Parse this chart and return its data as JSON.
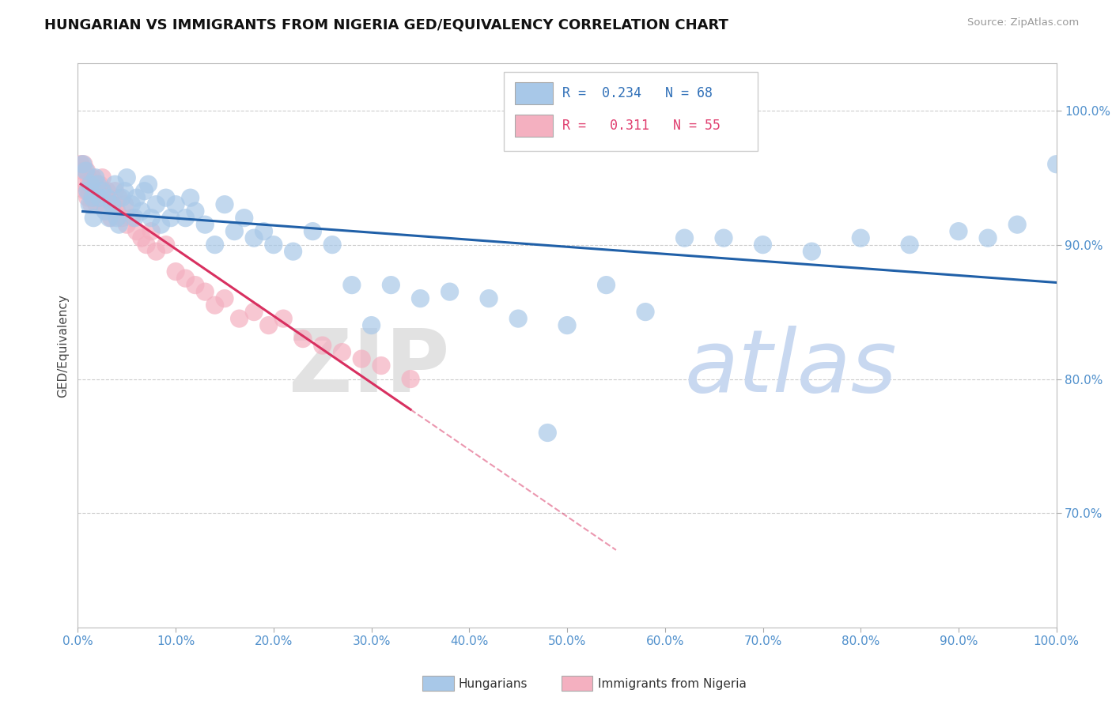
{
  "title": "HUNGARIAN VS IMMIGRANTS FROM NIGERIA GED/EQUIVALENCY CORRELATION CHART",
  "source": "Source: ZipAtlas.com",
  "ylabel": "GED/Equivalency",
  "xmin": 0.0,
  "xmax": 1.0,
  "ymin": 0.615,
  "ymax": 1.035,
  "blue_color": "#a8c8e8",
  "pink_color": "#f4b0c0",
  "blue_line_color": "#2060a8",
  "pink_line_color": "#d83060",
  "blue_scatter_x": [
    0.005,
    0.008,
    0.01,
    0.012,
    0.013,
    0.015,
    0.016,
    0.018,
    0.02,
    0.022,
    0.025,
    0.028,
    0.03,
    0.032,
    0.035,
    0.038,
    0.04,
    0.042,
    0.045,
    0.048,
    0.05,
    0.055,
    0.058,
    0.06,
    0.065,
    0.068,
    0.072,
    0.075,
    0.08,
    0.085,
    0.09,
    0.095,
    0.1,
    0.11,
    0.115,
    0.12,
    0.13,
    0.14,
    0.15,
    0.16,
    0.17,
    0.18,
    0.19,
    0.2,
    0.22,
    0.24,
    0.26,
    0.28,
    0.3,
    0.32,
    0.35,
    0.38,
    0.42,
    0.45,
    0.48,
    0.5,
    0.54,
    0.58,
    0.62,
    0.66,
    0.7,
    0.75,
    0.8,
    0.85,
    0.9,
    0.93,
    0.96,
    1.0
  ],
  "blue_scatter_y": [
    0.96,
    0.955,
    0.94,
    0.93,
    0.945,
    0.935,
    0.92,
    0.95,
    0.945,
    0.935,
    0.94,
    0.925,
    0.935,
    0.92,
    0.93,
    0.945,
    0.92,
    0.915,
    0.935,
    0.94,
    0.95,
    0.93,
    0.92,
    0.935,
    0.925,
    0.94,
    0.945,
    0.92,
    0.93,
    0.915,
    0.935,
    0.92,
    0.93,
    0.92,
    0.935,
    0.925,
    0.915,
    0.9,
    0.93,
    0.91,
    0.92,
    0.905,
    0.91,
    0.9,
    0.895,
    0.91,
    0.9,
    0.87,
    0.84,
    0.87,
    0.86,
    0.865,
    0.86,
    0.845,
    0.76,
    0.84,
    0.87,
    0.85,
    0.905,
    0.905,
    0.9,
    0.895,
    0.905,
    0.9,
    0.91,
    0.905,
    0.915,
    0.96
  ],
  "pink_scatter_x": [
    0.003,
    0.005,
    0.006,
    0.007,
    0.008,
    0.009,
    0.01,
    0.011,
    0.012,
    0.013,
    0.014,
    0.015,
    0.016,
    0.017,
    0.018,
    0.019,
    0.02,
    0.022,
    0.024,
    0.025,
    0.026,
    0.028,
    0.03,
    0.032,
    0.034,
    0.036,
    0.038,
    0.04,
    0.042,
    0.045,
    0.048,
    0.05,
    0.055,
    0.06,
    0.065,
    0.07,
    0.075,
    0.08,
    0.09,
    0.1,
    0.11,
    0.12,
    0.13,
    0.14,
    0.15,
    0.165,
    0.18,
    0.195,
    0.21,
    0.23,
    0.25,
    0.27,
    0.29,
    0.31,
    0.34
  ],
  "pink_scatter_y": [
    0.96,
    0.955,
    0.96,
    0.945,
    0.94,
    0.955,
    0.935,
    0.95,
    0.94,
    0.945,
    0.93,
    0.95,
    0.94,
    0.935,
    0.945,
    0.93,
    0.94,
    0.945,
    0.935,
    0.95,
    0.94,
    0.93,
    0.94,
    0.935,
    0.92,
    0.93,
    0.94,
    0.925,
    0.935,
    0.92,
    0.93,
    0.915,
    0.92,
    0.91,
    0.905,
    0.9,
    0.91,
    0.895,
    0.9,
    0.88,
    0.875,
    0.87,
    0.865,
    0.855,
    0.86,
    0.845,
    0.85,
    0.84,
    0.845,
    0.83,
    0.825,
    0.82,
    0.815,
    0.81,
    0.8
  ],
  "y_ticks": [
    0.7,
    0.8,
    0.9,
    1.0
  ],
  "x_ticks": [
    0.0,
    0.1,
    0.2,
    0.3,
    0.4,
    0.5,
    0.6,
    0.7,
    0.8,
    0.9,
    1.0
  ],
  "legend_blue_R": "0.234",
  "legend_blue_N": "68",
  "legend_pink_R": "0.311",
  "legend_pink_N": "55",
  "legend_label_1": "Hungarians",
  "legend_label_2": "Immigrants from Nigeria"
}
